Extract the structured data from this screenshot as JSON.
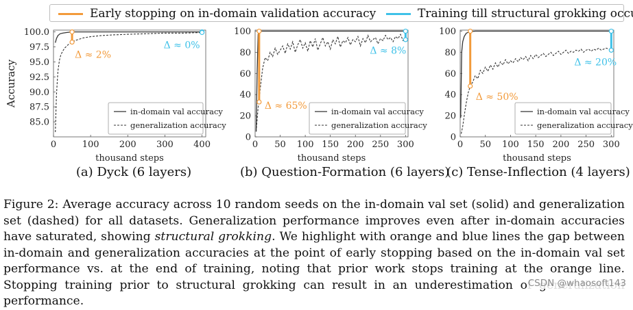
{
  "legend": [
    {
      "label": "Early stopping on in-domain validation accuracy",
      "color": "#f29a3a"
    },
    {
      "label": "Training till structural grokking occurs",
      "color": "#3ec1e8"
    }
  ],
  "colors": {
    "orange": "#f29a3a",
    "blue": "#3ec1e8",
    "solid": "#333333",
    "dashed": "#333333"
  },
  "chart_data": [
    {
      "type": "line",
      "caption": "(a) Dyck (6 layers)",
      "xlabel": "thousand steps",
      "ylabel": "Accuracy",
      "xlim": [
        0,
        410
      ],
      "ylim": [
        82.5,
        100.3
      ],
      "xticks": [
        0,
        100,
        200,
        300,
        400
      ],
      "yticks": [
        85.0,
        87.5,
        90.0,
        92.5,
        95.0,
        97.5,
        100.0
      ],
      "ytick_labels": [
        "85.0",
        "87.5",
        "90.0",
        "92.5",
        "95.0",
        "97.5",
        "100.0"
      ],
      "series_legend_labels": [
        "in-domain val accuracy",
        "generalization accuracy"
      ],
      "indomain": {
        "x": [
          5,
          8,
          12,
          18,
          25,
          35,
          50,
          100,
          200,
          300,
          400
        ],
        "y": [
          98.2,
          98.9,
          99.4,
          99.7,
          99.8,
          99.9,
          100.0,
          100.0,
          100.0,
          100.0,
          100.0
        ]
      },
      "generalization": {
        "x": [
          5,
          8,
          12,
          16,
          20,
          25,
          30,
          40,
          50,
          60,
          80,
          100,
          130,
          160,
          200,
          250,
          300,
          350,
          400
        ],
        "y": [
          83.3,
          89.5,
          93.5,
          95.3,
          96.2,
          96.8,
          97.3,
          97.9,
          98.3,
          98.6,
          99.0,
          99.2,
          99.4,
          99.5,
          99.6,
          99.7,
          99.8,
          99.8,
          99.9
        ]
      },
      "early_stop": {
        "x": 50,
        "y_top": 100.0,
        "y_bottom": 98.3,
        "label": "Δ ≈ 2%"
      },
      "grokking": {
        "x": 400,
        "y_top": 100.0,
        "y_bottom": 99.9,
        "label": "Δ ≈ 0%"
      }
    },
    {
      "type": "line",
      "caption": "(b) Question-Formation (6 layers)",
      "xlabel": "thousand steps",
      "ylabel": "",
      "xlim": [
        0,
        305
      ],
      "ylim": [
        0,
        101
      ],
      "xticks": [
        0,
        50,
        100,
        150,
        200,
        250,
        300
      ],
      "yticks": [
        0,
        20,
        40,
        60,
        80,
        100
      ],
      "ytick_labels": [
        "0",
        "20",
        "40",
        "60",
        "80",
        "100"
      ],
      "series_legend_labels": [
        "in-domain val accuracy",
        "generalization accuracy"
      ],
      "indomain": {
        "x": [
          2,
          4,
          6,
          8,
          300
        ],
        "y": [
          5,
          60,
          97,
          100,
          100
        ]
      },
      "generalization": {
        "x": [
          2,
          4,
          6,
          8,
          10,
          15,
          20,
          25,
          30,
          35,
          40,
          45,
          50,
          55,
          60,
          65,
          70,
          75,
          80,
          85,
          90,
          95,
          100,
          105,
          110,
          115,
          120,
          125,
          130,
          135,
          140,
          145,
          150,
          155,
          160,
          165,
          170,
          175,
          180,
          185,
          190,
          195,
          200,
          205,
          210,
          215,
          220,
          225,
          230,
          235,
          240,
          245,
          250,
          255,
          260,
          265,
          270,
          275,
          280,
          285,
          290,
          295,
          300
        ],
        "y": [
          5,
          16,
          28,
          33,
          45,
          65,
          75,
          72,
          80,
          76,
          84,
          78,
          82,
          86,
          79,
          88,
          83,
          90,
          80,
          87,
          92,
          84,
          89,
          81,
          91,
          85,
          93,
          82,
          88,
          94,
          86,
          90,
          83,
          92,
          88,
          95,
          85,
          91,
          89,
          94,
          87,
          92,
          90,
          95,
          86,
          93,
          89,
          96,
          90,
          92,
          94,
          88,
          93,
          91,
          96,
          92,
          94,
          90,
          95,
          93,
          97,
          91,
          92
        ]
      },
      "early_stop": {
        "x": 8,
        "y_top": 100,
        "y_bottom": 33,
        "label": "Δ ≈ 65%"
      },
      "grokking": {
        "x": 300,
        "y_top": 100,
        "y_bottom": 92,
        "label": "Δ ≈ 8%"
      }
    },
    {
      "type": "line",
      "caption": "(c) Tense-Inflection (4 layers)",
      "xlabel": "thousand steps",
      "ylabel": "",
      "xlim": [
        0,
        305
      ],
      "ylim": [
        0,
        101
      ],
      "xticks": [
        0,
        50,
        100,
        150,
        200,
        250,
        300
      ],
      "yticks": [
        0,
        20,
        40,
        60,
        80,
        100
      ],
      "ytick_labels": [
        "0",
        "20",
        "40",
        "60",
        "80",
        "100"
      ],
      "series_legend_labels": [
        "in-domain val accuracy",
        "generalization accuracy"
      ],
      "indomain": {
        "x": [
          1,
          3,
          5,
          8,
          12,
          16,
          20,
          25,
          30,
          300
        ],
        "y": [
          18,
          80,
          90,
          95,
          98,
          99,
          99.5,
          99.8,
          100,
          100
        ]
      },
      "generalization": {
        "x": [
          2,
          5,
          8,
          12,
          16,
          20,
          25,
          30,
          35,
          40,
          45,
          50,
          55,
          60,
          65,
          70,
          75,
          80,
          85,
          90,
          95,
          100,
          105,
          110,
          115,
          120,
          125,
          130,
          135,
          140,
          145,
          150,
          155,
          160,
          165,
          170,
          175,
          180,
          185,
          190,
          195,
          200,
          205,
          210,
          215,
          220,
          225,
          230,
          235,
          240,
          245,
          250,
          255,
          260,
          265,
          270,
          275,
          280,
          285,
          290,
          295,
          300
        ],
        "y": [
          3,
          10,
          20,
          32,
          42,
          48,
          52,
          58,
          55,
          63,
          60,
          66,
          62,
          68,
          64,
          70,
          66,
          71,
          68,
          73,
          69,
          72,
          70,
          74,
          71,
          75,
          73,
          76,
          72,
          77,
          74,
          78,
          75,
          77,
          79,
          76,
          78,
          80,
          77,
          79,
          81,
          78,
          80,
          82,
          79,
          81,
          80,
          82,
          81,
          83,
          80,
          82,
          83,
          81,
          83,
          82,
          84,
          82,
          83,
          84,
          83,
          82
        ]
      },
      "early_stop": {
        "x": 20,
        "y_top": 100,
        "y_bottom": 48,
        "label": "Δ ≈ 50%"
      },
      "grokking": {
        "x": 300,
        "y_top": 100,
        "y_bottom": 82,
        "label": "Δ ≈ 20%"
      }
    }
  ],
  "caption": {
    "figure_label": "Figure 2:",
    "text1": "Average accuracy across 10 random seeds on the in-domain val set (solid) and generalization set (dashed) for all datasets. Generalization performance improves even after in-domain accuracies have saturated, showing",
    "emph": "structural grokking",
    "text2": ". We highlight with orange and blue lines the gap between in-domain and generalization accuracies at the point of early stopping based on the in-domain val set performance vs. at the end of training, noting that prior work stops training at the orange line. Stopping training prior to structural grokking can result in an underestimation of generalization performance."
  },
  "watermark": "CSDN @whaosoft143"
}
